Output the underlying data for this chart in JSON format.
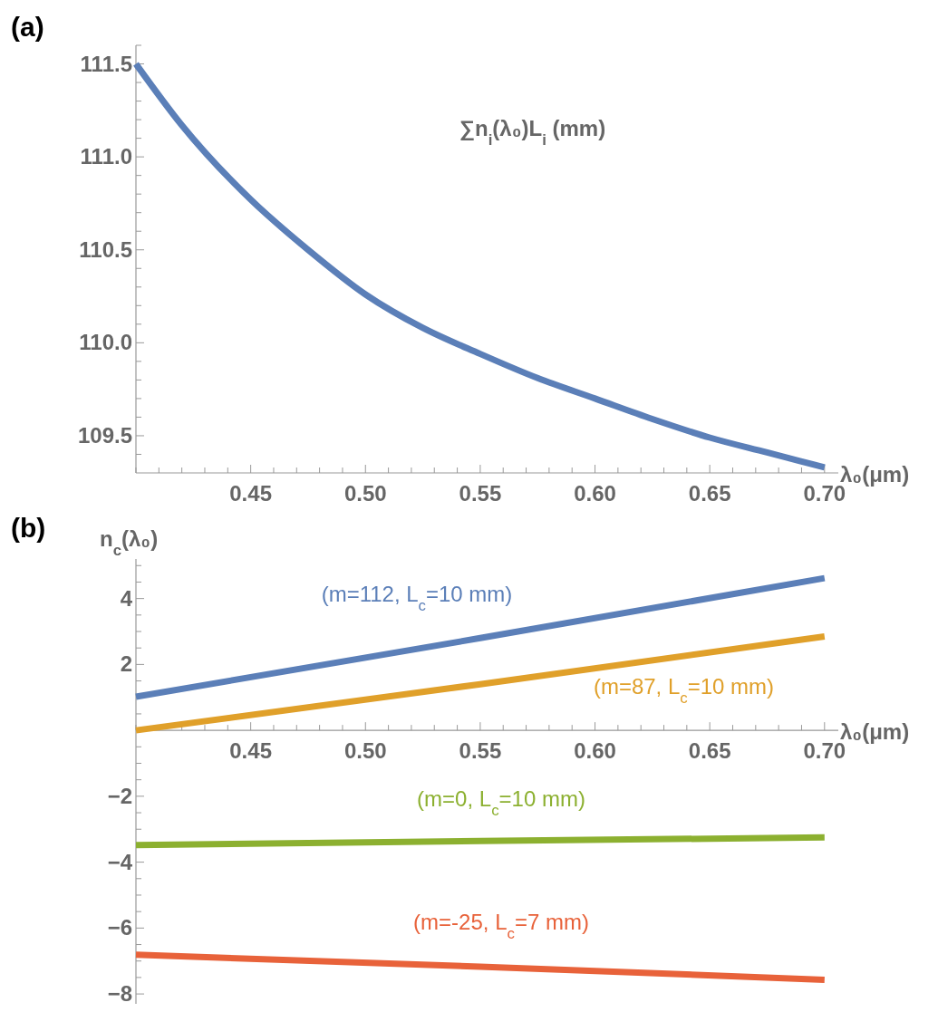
{
  "chart_data": [
    {
      "type": "line",
      "title": "(a)",
      "xlabel": "λ₀(μm)",
      "ylabel": "∑n$_{i}$(λ₀)L$_{i}$ (mm)",
      "xlim": [
        0.4,
        0.706
      ],
      "ylim": [
        109.3,
        111.6
      ],
      "xticks": [
        {
          "value": 0.4,
          "label": null
        },
        {
          "value": 0.41,
          "label": null
        },
        {
          "value": 0.42,
          "label": null
        },
        {
          "value": 0.43,
          "label": null
        },
        {
          "value": 0.44,
          "label": null
        },
        {
          "value": 0.45,
          "label": "0.45"
        },
        {
          "value": 0.46,
          "label": null
        },
        {
          "value": 0.47,
          "label": null
        },
        {
          "value": 0.48,
          "label": null
        },
        {
          "value": 0.49,
          "label": null
        },
        {
          "value": 0.5,
          "label": "0.50"
        },
        {
          "value": 0.51,
          "label": null
        },
        {
          "value": 0.52,
          "label": null
        },
        {
          "value": 0.53,
          "label": null
        },
        {
          "value": 0.54,
          "label": null
        },
        {
          "value": 0.55,
          "label": "0.55"
        },
        {
          "value": 0.56,
          "label": null
        },
        {
          "value": 0.57,
          "label": null
        },
        {
          "value": 0.58,
          "label": null
        },
        {
          "value": 0.59,
          "label": null
        },
        {
          "value": 0.6,
          "label": "0.60"
        },
        {
          "value": 0.61,
          "label": null
        },
        {
          "value": 0.62,
          "label": null
        },
        {
          "value": 0.63,
          "label": null
        },
        {
          "value": 0.64,
          "label": null
        },
        {
          "value": 0.65,
          "label": "0.65"
        },
        {
          "value": 0.66,
          "label": null
        },
        {
          "value": 0.67,
          "label": null
        },
        {
          "value": 0.68,
          "label": null
        },
        {
          "value": 0.69,
          "label": null
        },
        {
          "value": 0.7,
          "label": "0.70"
        }
      ],
      "yticks": [
        {
          "value": 109.4,
          "label": null
        },
        {
          "value": 109.5,
          "label": "109.5"
        },
        {
          "value": 109.6,
          "label": null
        },
        {
          "value": 109.7,
          "label": null
        },
        {
          "value": 109.8,
          "label": null
        },
        {
          "value": 109.9,
          "label": null
        },
        {
          "value": 110,
          "label": "110.0"
        },
        {
          "value": 110.1,
          "label": null
        },
        {
          "value": 110.2,
          "label": null
        },
        {
          "value": 110.3,
          "label": null
        },
        {
          "value": 110.4,
          "label": null
        },
        {
          "value": 110.5,
          "label": "110.5"
        },
        {
          "value": 110.6,
          "label": null
        },
        {
          "value": 110.7,
          "label": null
        },
        {
          "value": 110.8,
          "label": null
        },
        {
          "value": 110.9,
          "label": null
        },
        {
          "value": 111,
          "label": "111.0"
        },
        {
          "value": 111.1,
          "label": null
        },
        {
          "value": 111.2,
          "label": null
        },
        {
          "value": 111.3,
          "label": null
        },
        {
          "value": 111.4,
          "label": null
        },
        {
          "value": 111.5,
          "label": "111.5"
        },
        {
          "value": 111.6,
          "label": null
        }
      ],
      "x": [
        0.4,
        0.42,
        0.45,
        0.475,
        0.5,
        0.525,
        0.55,
        0.575,
        0.6,
        0.625,
        0.65,
        0.675,
        0.7
      ],
      "series": [
        {
          "color": "#5b7fb8",
          "values": [
            111.5,
            111.17,
            110.77,
            110.5,
            110.26,
            110.08,
            109.94,
            109.81,
            109.7,
            109.59,
            109.49,
            109.41,
            109.33
          ]
        }
      ]
    },
    {
      "type": "line",
      "title": "(b)",
      "xlabel": "λ₀(μm)",
      "ylabel": "n$_{c}$(λ₀)",
      "xlim": [
        0.4,
        0.706
      ],
      "ylim": [
        -8.3,
        5.2
      ],
      "xticks": [
        {
          "value": 0.4,
          "label": null
        },
        {
          "value": 0.41,
          "label": null
        },
        {
          "value": 0.42,
          "label": null
        },
        {
          "value": 0.43,
          "label": null
        },
        {
          "value": 0.44,
          "label": null
        },
        {
          "value": 0.45,
          "label": "0.45"
        },
        {
          "value": 0.46,
          "label": null
        },
        {
          "value": 0.47,
          "label": null
        },
        {
          "value": 0.48,
          "label": null
        },
        {
          "value": 0.49,
          "label": null
        },
        {
          "value": 0.5,
          "label": "0.50"
        },
        {
          "value": 0.51,
          "label": null
        },
        {
          "value": 0.52,
          "label": null
        },
        {
          "value": 0.53,
          "label": null
        },
        {
          "value": 0.54,
          "label": null
        },
        {
          "value": 0.55,
          "label": "0.55"
        },
        {
          "value": 0.56,
          "label": null
        },
        {
          "value": 0.57,
          "label": null
        },
        {
          "value": 0.58,
          "label": null
        },
        {
          "value": 0.59,
          "label": null
        },
        {
          "value": 0.6,
          "label": "0.60"
        },
        {
          "value": 0.61,
          "label": null
        },
        {
          "value": 0.62,
          "label": null
        },
        {
          "value": 0.63,
          "label": null
        },
        {
          "value": 0.64,
          "label": null
        },
        {
          "value": 0.65,
          "label": "0.65"
        },
        {
          "value": 0.66,
          "label": null
        },
        {
          "value": 0.67,
          "label": null
        },
        {
          "value": 0.68,
          "label": null
        },
        {
          "value": 0.69,
          "label": null
        },
        {
          "value": 0.7,
          "label": "0.70"
        }
      ],
      "yticks": [
        {
          "value": -8,
          "label": "−8"
        },
        {
          "value": -7.5,
          "label": null
        },
        {
          "value": -7,
          "label": null
        },
        {
          "value": -6.5,
          "label": null
        },
        {
          "value": -6,
          "label": "−6"
        },
        {
          "value": -5.5,
          "label": null
        },
        {
          "value": -5,
          "label": null
        },
        {
          "value": -4.5,
          "label": null
        },
        {
          "value": -4,
          "label": "−4"
        },
        {
          "value": -3.5,
          "label": null
        },
        {
          "value": -3,
          "label": null
        },
        {
          "value": -2.5,
          "label": null
        },
        {
          "value": -2,
          "label": "−2"
        },
        {
          "value": -1.5,
          "label": null
        },
        {
          "value": -1,
          "label": null
        },
        {
          "value": -0.5,
          "label": null
        },
        {
          "value": 0.5,
          "label": null
        },
        {
          "value": 1,
          "label": null
        },
        {
          "value": 1.5,
          "label": null
        },
        {
          "value": 2,
          "label": "2"
        },
        {
          "value": 2.5,
          "label": null
        },
        {
          "value": 3,
          "label": null
        },
        {
          "value": 3.5,
          "label": null
        },
        {
          "value": 4,
          "label": "4"
        },
        {
          "value": 4.5,
          "label": null
        },
        {
          "value": 5,
          "label": null
        }
      ],
      "x": [
        0.4,
        0.55,
        0.7
      ],
      "series": [
        {
          "name": "(m=112, L$_{c}$=10 mm)",
          "color": "#5b7fb8",
          "values": [
            1.02,
            2.8,
            4.62
          ]
        },
        {
          "name": "(m=87, L$_{c}$=10 mm)",
          "color": "#e0a02a",
          "values": [
            0.0,
            1.4,
            2.85
          ]
        },
        {
          "name": "(m=0, L$_{c}$=10 mm)",
          "color": "#8cb030",
          "values": [
            -3.48,
            -3.36,
            -3.25
          ]
        },
        {
          "name": "(m=-25, L$_{c}$=7 mm)",
          "color": "#e8623a",
          "values": [
            -6.81,
            -7.17,
            -7.57
          ]
        }
      ]
    }
  ]
}
